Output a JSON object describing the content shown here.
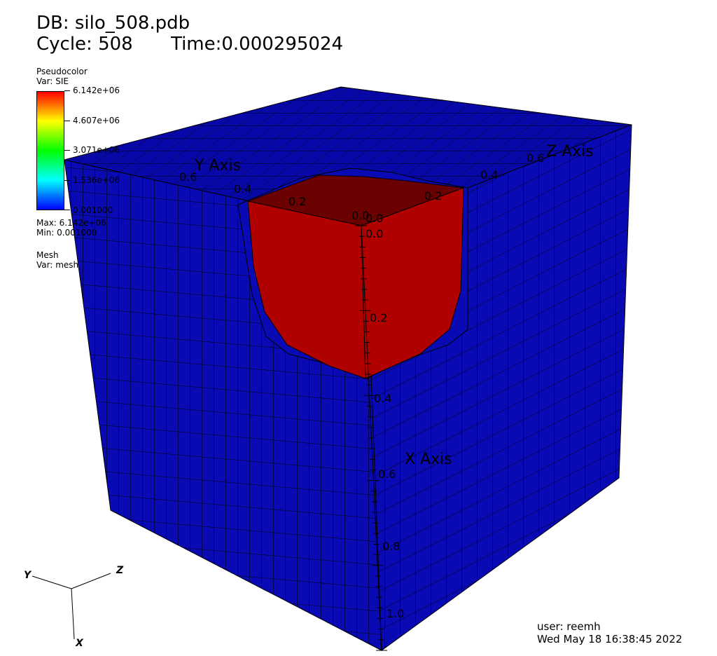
{
  "header": {
    "db": "DB: silo_508.pdb",
    "cycle": "Cycle: 508",
    "time": "Time:0.000295024"
  },
  "legend": {
    "plot_type": "Pseudocolor",
    "var": "Var: SIE",
    "tick_labels": [
      "6.142e+06",
      "4.607e+06",
      "3.071e+06",
      "1.536e+06",
      "0.001000"
    ],
    "colors": [
      "#ff0000",
      "#ffff00",
      "#00ff00",
      "#00ffff",
      "#0000ff"
    ],
    "max": "Max: 6.142e+06",
    "min": "Min: 0.001000",
    "mesh_title": "Mesh",
    "mesh_var": "Var: mesh"
  },
  "axes": {
    "x_label": "X Axis",
    "y_label": "Y Axis",
    "z_label": "Z Axis",
    "x_ticks": [
      "0.0",
      "0.2",
      "0.4",
      "0.6",
      "0.8",
      "1.0"
    ],
    "y_ticks": [
      "0.6",
      "0.4",
      "0.2",
      "0.0"
    ],
    "z_ticks": [
      "0.0",
      "0.2",
      "0.4",
      "0.6"
    ],
    "triad": {
      "x": "X",
      "y": "Y",
      "z": "Z"
    }
  },
  "colors": {
    "mesh_blue": "#0a0ab4",
    "mesh_blue_dark": "#060694",
    "hot_red": "#b00000",
    "hot_red_top": "#6b0000",
    "edge": "#000000"
  },
  "footer": {
    "user": "user: reemh",
    "date": "Wed May 18 16:38:45 2022"
  }
}
